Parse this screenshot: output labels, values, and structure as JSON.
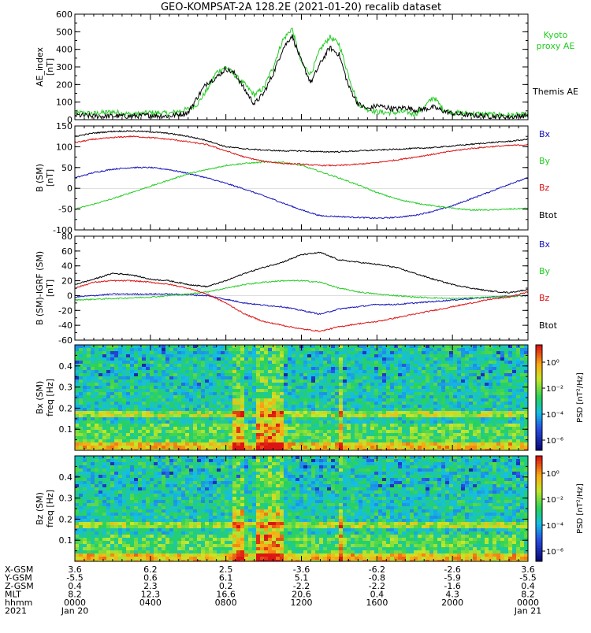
{
  "title": "GEO-KOMPSAT-2A 128.2E (2021-01-20) recalib dataset",
  "colors": {
    "black": "#000000",
    "green": "#22cc22",
    "red": "#dd1111",
    "blue": "#1111bb",
    "axis": "#000000"
  },
  "chart_data": [
    {
      "type": "line",
      "ylabel": "AE_index",
      "yunit": "[nT]",
      "ylim": [
        0,
        600
      ],
      "yticks": [
        0,
        100,
        200,
        300,
        400,
        500,
        600
      ],
      "legend": [
        {
          "label": "Kyoto",
          "color": "green"
        },
        {
          "label": "proxy AE",
          "color": "green"
        },
        {
          "label": "Themis AE",
          "color": "black"
        }
      ],
      "series": [
        {
          "name": "Kyoto proxy AE",
          "color": "green",
          "x": [
            0,
            1,
            2,
            3,
            4,
            5,
            6,
            6.5,
            7,
            7.5,
            8,
            8.5,
            9,
            9.5,
            10,
            10.5,
            11,
            11.5,
            12,
            12.5,
            13,
            13.5,
            14,
            14.5,
            15,
            15.5,
            16,
            16.5,
            17,
            17.5,
            18,
            18.5,
            19,
            19.5,
            20,
            21,
            22,
            23,
            24
          ],
          "y": [
            40,
            35,
            45,
            30,
            40,
            35,
            60,
            90,
            170,
            270,
            300,
            250,
            200,
            140,
            180,
            300,
            450,
            520,
            320,
            260,
            400,
            470,
            430,
            250,
            90,
            60,
            45,
            40,
            40,
            45,
            30,
            70,
            130,
            60,
            40,
            35,
            30,
            25,
            30
          ]
        },
        {
          "name": "Themis AE",
          "color": "black",
          "x": [
            0,
            1,
            2,
            3,
            4,
            5,
            6,
            6.5,
            7,
            7.5,
            8,
            8.5,
            9,
            9.5,
            10,
            10.5,
            11,
            11.5,
            12,
            12.5,
            13,
            13.5,
            14,
            14.5,
            15,
            15.5,
            16,
            16.5,
            17,
            17.5,
            18,
            18.5,
            19,
            19.5,
            20,
            21,
            22,
            23,
            24
          ],
          "y": [
            25,
            20,
            20,
            20,
            25,
            20,
            40,
            130,
            210,
            240,
            290,
            260,
            170,
            90,
            150,
            260,
            400,
            480,
            330,
            210,
            320,
            410,
            370,
            190,
            90,
            60,
            80,
            70,
            60,
            70,
            55,
            60,
            70,
            50,
            35,
            25,
            20,
            15,
            25
          ]
        }
      ]
    },
    {
      "type": "line",
      "ylabel": "B (SM)",
      "yunit": "[nT]",
      "ylim": [
        -100,
        150
      ],
      "yticks": [
        -100,
        -50,
        0,
        50,
        100,
        150
      ],
      "legend": [
        {
          "label": "Bx",
          "color": "blue"
        },
        {
          "label": "By",
          "color": "green"
        },
        {
          "label": "Bz",
          "color": "red"
        },
        {
          "label": "Btot",
          "color": "black"
        }
      ],
      "series": [
        {
          "name": "Bx",
          "color": "blue",
          "x": [
            0,
            1,
            2,
            3,
            4,
            5,
            6,
            7,
            8,
            9,
            10,
            11,
            12,
            13,
            14,
            15,
            16,
            17,
            18,
            19,
            20,
            21,
            22,
            23,
            24
          ],
          "y": [
            25,
            38,
            46,
            50,
            50,
            45,
            36,
            25,
            12,
            -2,
            -18,
            -35,
            -52,
            -66,
            -68,
            -70,
            -72,
            -70,
            -65,
            -55,
            -42,
            -25,
            -8,
            10,
            25
          ]
        },
        {
          "name": "By",
          "color": "green",
          "x": [
            0,
            1,
            2,
            3,
            4,
            5,
            6,
            7,
            8,
            9,
            10,
            11,
            12,
            13,
            14,
            15,
            16,
            17,
            18,
            19,
            20,
            21,
            22,
            23,
            24
          ],
          "y": [
            -50,
            -38,
            -25,
            -10,
            5,
            20,
            35,
            45,
            55,
            60,
            63,
            63,
            55,
            40,
            25,
            8,
            -10,
            -25,
            -35,
            -42,
            -48,
            -52,
            -52,
            -50,
            -48
          ]
        },
        {
          "name": "Bz",
          "color": "red",
          "x": [
            0,
            1,
            2,
            3,
            4,
            5,
            6,
            7,
            8,
            9,
            10,
            11,
            12,
            13,
            14,
            15,
            16,
            17,
            18,
            19,
            20,
            21,
            22,
            23,
            24
          ],
          "y": [
            110,
            118,
            122,
            125,
            122,
            118,
            112,
            105,
            90,
            75,
            65,
            60,
            58,
            55,
            55,
            58,
            62,
            68,
            75,
            82,
            90,
            96,
            100,
            103,
            105
          ]
        },
        {
          "name": "Btot",
          "color": "black",
          "x": [
            0,
            1,
            2,
            3,
            4,
            5,
            6,
            7,
            8,
            9,
            10,
            11,
            12,
            13,
            14,
            15,
            16,
            17,
            18,
            19,
            20,
            21,
            22,
            23,
            24
          ],
          "y": [
            125,
            133,
            137,
            138,
            136,
            132,
            125,
            115,
            100,
            95,
            92,
            90,
            90,
            88,
            88,
            90,
            92,
            94,
            96,
            98,
            102,
            106,
            110,
            113,
            118
          ]
        }
      ]
    },
    {
      "type": "line",
      "ylabel": "B (SM)-IGRF (SM)",
      "yunit": "[nT]",
      "ylim": [
        -60,
        80
      ],
      "yticks": [
        -60,
        -40,
        -20,
        0,
        20,
        40,
        60,
        80
      ],
      "legend": [
        {
          "label": "Bx",
          "color": "blue"
        },
        {
          "label": "By",
          "color": "green"
        },
        {
          "label": "Bz",
          "color": "red"
        },
        {
          "label": "Btot",
          "color": "black"
        }
      ],
      "series": [
        {
          "name": "Bx",
          "color": "blue",
          "x": [
            0,
            1,
            2,
            3,
            4,
            5,
            6,
            7,
            8,
            9,
            10,
            11,
            12,
            13,
            14,
            15,
            16,
            17,
            18,
            19,
            20,
            21,
            22,
            23,
            24
          ],
          "y": [
            -2,
            0,
            2,
            2,
            2,
            2,
            1,
            0,
            -5,
            -10,
            -13,
            -15,
            -20,
            -25,
            -18,
            -15,
            -12,
            -12,
            -10,
            -8,
            -6,
            -4,
            -2,
            -1,
            0
          ]
        },
        {
          "name": "By",
          "color": "green",
          "x": [
            0,
            1,
            2,
            3,
            4,
            5,
            6,
            7,
            8,
            9,
            10,
            11,
            12,
            13,
            14,
            15,
            16,
            17,
            18,
            19,
            20,
            21,
            22,
            23,
            24
          ],
          "y": [
            -6,
            -5,
            -4,
            -3,
            -2,
            0,
            2,
            5,
            10,
            15,
            18,
            20,
            20,
            18,
            10,
            5,
            2,
            0,
            -2,
            -3,
            -4,
            -3,
            -2,
            -1,
            0
          ]
        },
        {
          "name": "Bz",
          "color": "red",
          "x": [
            0,
            1,
            2,
            3,
            4,
            5,
            6,
            7,
            8,
            9,
            10,
            11,
            12,
            13,
            14,
            15,
            16,
            17,
            18,
            19,
            20,
            21,
            22,
            23,
            24
          ],
          "y": [
            10,
            18,
            20,
            20,
            18,
            15,
            10,
            2,
            -10,
            -25,
            -35,
            -40,
            -45,
            -48,
            -42,
            -38,
            -35,
            -30,
            -25,
            -20,
            -15,
            -10,
            -5,
            -2,
            5
          ]
        },
        {
          "name": "Btot",
          "color": "black",
          "x": [
            0,
            1,
            2,
            3,
            4,
            5,
            6,
            7,
            8,
            9,
            10,
            11,
            12,
            13,
            14,
            15,
            16,
            17,
            18,
            19,
            20,
            21,
            22,
            23,
            24
          ],
          "y": [
            15,
            22,
            30,
            28,
            22,
            20,
            15,
            12,
            20,
            30,
            38,
            45,
            55,
            58,
            48,
            45,
            42,
            38,
            30,
            22,
            15,
            10,
            6,
            4,
            8
          ]
        }
      ]
    },
    {
      "type": "heatmap",
      "ylabel": "Bx (SM)",
      "yunit": "freq [Hz]",
      "ylim": [
        0,
        0.5
      ],
      "yticks": [
        0.1,
        0.2,
        0.3,
        0.4
      ],
      "colorbar": {
        "label": "PSD [nT²/Hz]",
        "ticks": [
          "10⁰",
          "10⁻²",
          "10⁻⁴",
          "10⁻⁶"
        ]
      },
      "bright_lines_freq": [
        0.16,
        0.18
      ],
      "active_intervals": [
        [
          8.3,
          9.0
        ],
        [
          9.5,
          11.0
        ],
        [
          13.9,
          14.2
        ]
      ]
    },
    {
      "type": "heatmap",
      "ylabel": "Bz (SM)",
      "yunit": "freq [Hz]",
      "ylim": [
        0,
        0.5
      ],
      "yticks": [
        0.1,
        0.2,
        0.3,
        0.4
      ],
      "colorbar": {
        "label": "PSD [nT²/Hz]",
        "ticks": [
          "10⁰",
          "10⁻²",
          "10⁻⁴",
          "10⁻⁶"
        ]
      },
      "bright_lines_freq": [
        0.16,
        0.18
      ],
      "active_intervals": [
        [
          8.3,
          9.0
        ],
        [
          9.5,
          11.0
        ],
        [
          13.9,
          14.2
        ]
      ]
    }
  ],
  "xaxis": {
    "range_hours": [
      0,
      24
    ],
    "label_hours": [
      0,
      4,
      8,
      12,
      16,
      20,
      24
    ],
    "rows": [
      {
        "label": "X-GSM",
        "values": [
          "3.6",
          "6.2",
          "2.5",
          "-3.6",
          "-6.2",
          "-2.6",
          "3.6"
        ]
      },
      {
        "label": "Y-GSM",
        "values": [
          "-5.5",
          "0.6",
          "6.1",
          "5.1",
          "-0.8",
          "-5.9",
          "-5.5"
        ]
      },
      {
        "label": "Z-GSM",
        "values": [
          "0.4",
          "2.3",
          "0.2",
          "-2.2",
          "-2.2",
          "-1.6",
          "0.4"
        ]
      },
      {
        "label": "MLT",
        "values": [
          "8.2",
          "12.3",
          "16.6",
          "20.6",
          "0.4",
          "4.3",
          "8.2"
        ]
      },
      {
        "label": "hhmm",
        "values": [
          "0000",
          "0400",
          "0800",
          "1200",
          "1600",
          "2000",
          "0000"
        ]
      },
      {
        "label": "2021",
        "values": [
          "Jan 20",
          "",
          "",
          "",
          "",
          "",
          "Jan 21"
        ]
      }
    ]
  }
}
